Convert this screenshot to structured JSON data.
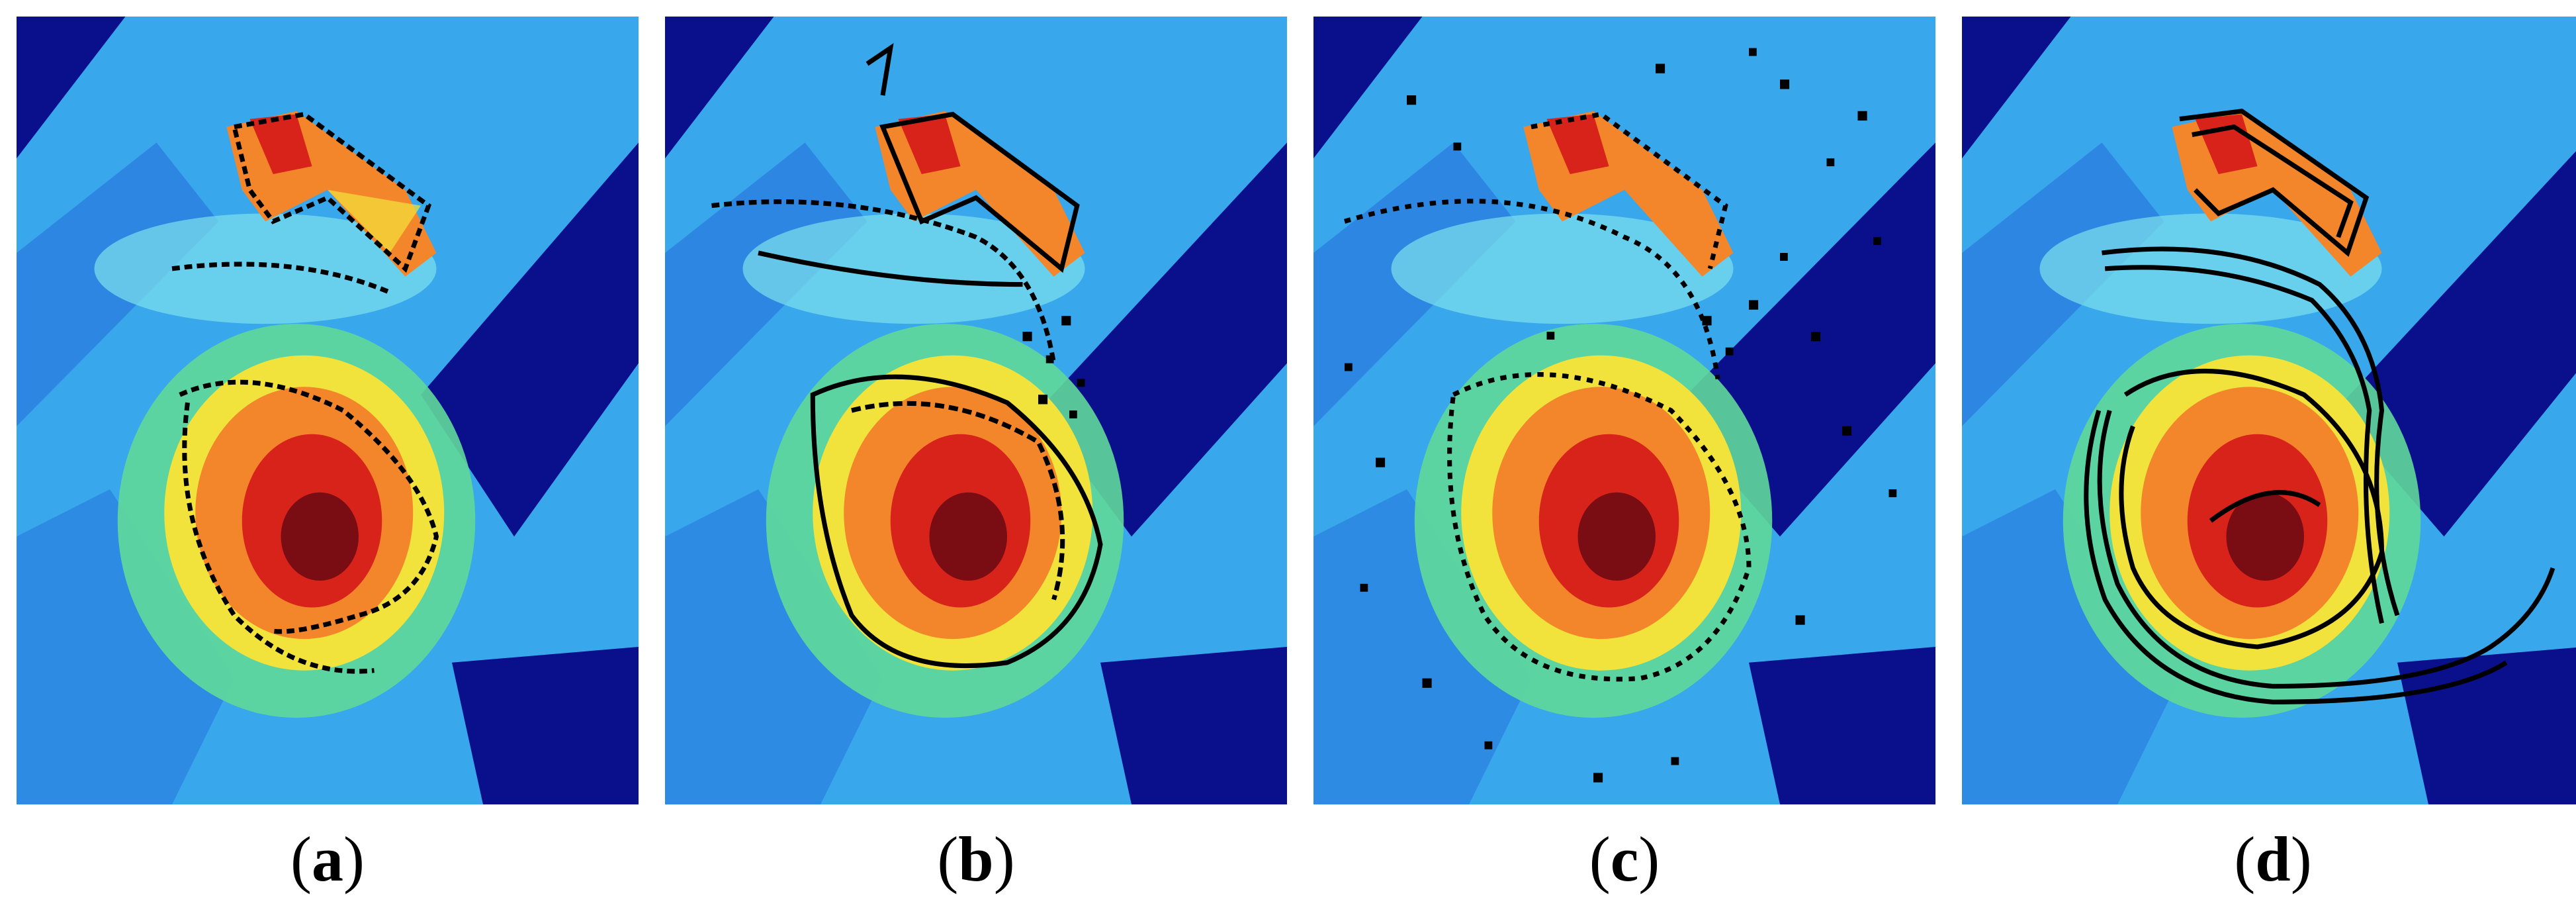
{
  "panels": [
    {
      "id": "a",
      "label": "a",
      "contour_style": "dotted-threshold"
    },
    {
      "id": "b",
      "label": "b",
      "contour_style": "region-outline"
    },
    {
      "id": "c",
      "label": "c",
      "contour_style": "noisy-pixels"
    },
    {
      "id": "d",
      "label": "d",
      "contour_style": "smooth-spiral-bands"
    }
  ],
  "caption_open": "(",
  "caption_close": ")",
  "colors": {
    "background_blue": "#2f9ee8",
    "dark_blue": "#0a0f8c",
    "cyan": "#33c9ee",
    "green": "#6be06a",
    "yellow": "#f2e23c",
    "orange": "#f3852b",
    "red": "#d8231a",
    "dark_red": "#7a0d14",
    "contour": "#000000"
  }
}
